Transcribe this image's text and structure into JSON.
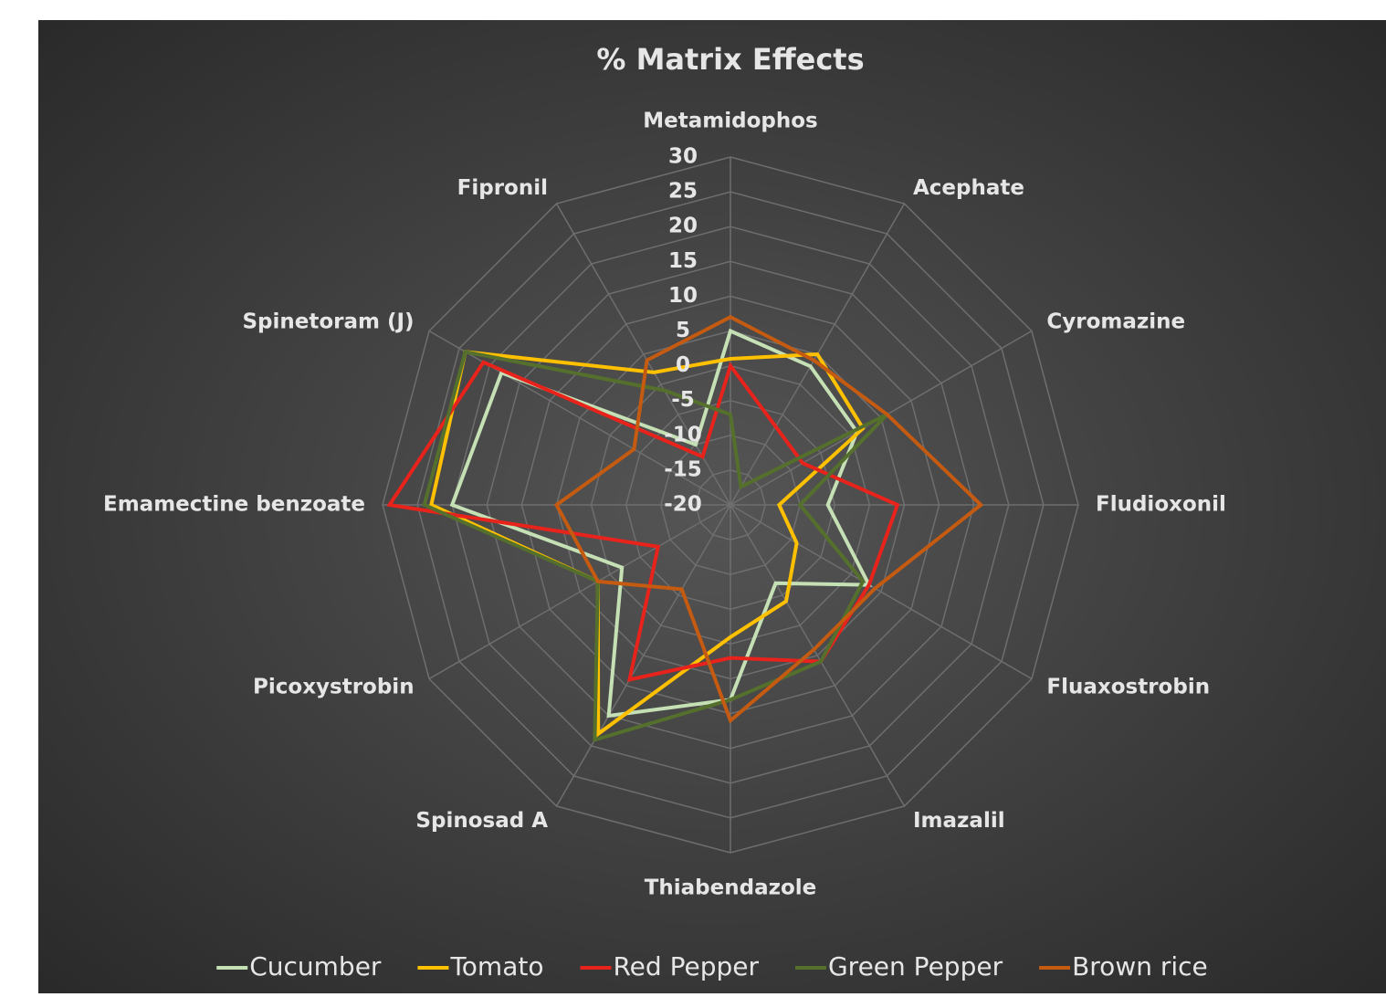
{
  "chart_data": {
    "type": "radar",
    "title": "% Matrix Effects",
    "categories": [
      "Metamidophos",
      "Acephate",
      "Cyromazine",
      "Fludioxonil",
      "Fluaxostrobin",
      "Imazalil",
      "Thiabendazole",
      "Spinosad A",
      "Picoxystrobin",
      "Emamectine benzoate",
      "Spinetoram (J)",
      "Fipronil"
    ],
    "series": [
      {
        "name": "Cucumber",
        "color": "#c5e0b4",
        "values": [
          5,
          3,
          1,
          -6,
          3,
          -7,
          8,
          15,
          -2,
          20,
          18,
          -10
        ]
      },
      {
        "name": "Tomato",
        "color": "#ffc000",
        "values": [
          1,
          5,
          2,
          -13,
          -9,
          -4,
          -1,
          18,
          2,
          23,
          24,
          2
        ]
      },
      {
        "name": "Red Pepper",
        "color": "#e8231c",
        "values": [
          0,
          -7,
          -8,
          4,
          3,
          6,
          2,
          9,
          -8,
          29,
          21,
          -12
        ]
      },
      {
        "name": "Green Pepper",
        "color": "#55702c",
        "values": [
          -7,
          -17,
          6,
          -10,
          2,
          6,
          8,
          19,
          2,
          24,
          24,
          -1
        ]
      },
      {
        "name": "Brown rice",
        "color": "#c55a11",
        "values": [
          7,
          4,
          6,
          16,
          4,
          4,
          11,
          -6,
          2,
          5,
          -4,
          4
        ]
      }
    ],
    "ylim": [
      -20,
      30
    ],
    "yticks": [
      -20,
      -15,
      -10,
      -5,
      0,
      5,
      10,
      15,
      20,
      25,
      30
    ],
    "grid": true,
    "legend": "bottom"
  }
}
